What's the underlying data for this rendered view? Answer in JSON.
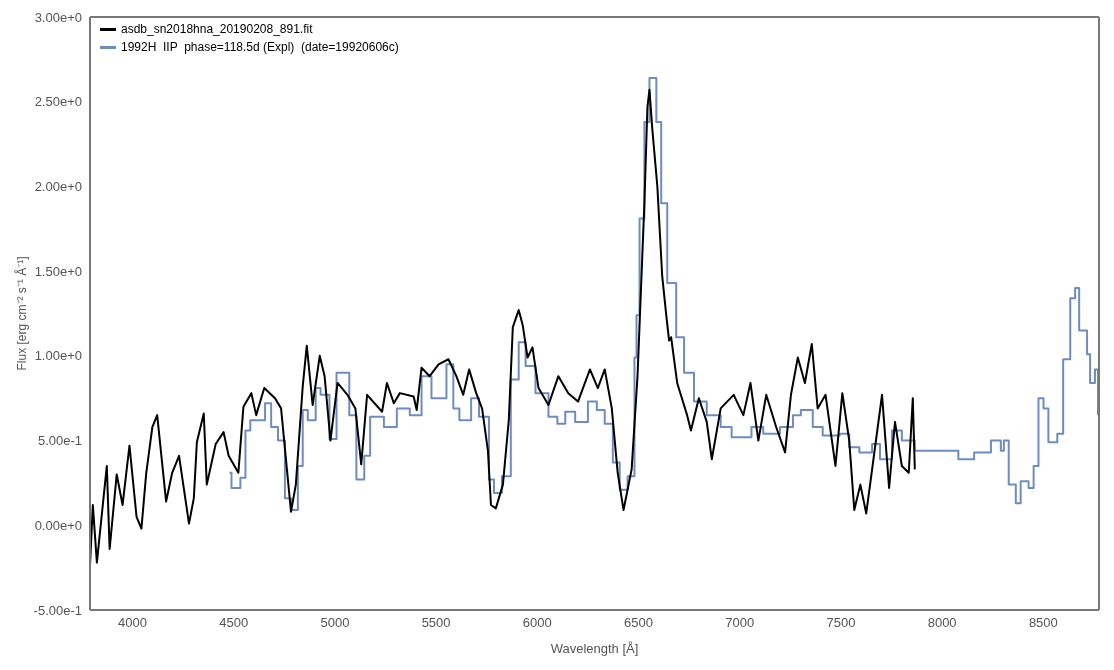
{
  "chart_data": {
    "type": "line",
    "xlabel": "Wavelength [Å]",
    "ylabel": "Flux [erg cm⁻² s⁻¹ Å⁻¹]",
    "xlim": [
      3790,
      8775
    ],
    "xticks": [
      4000,
      4500,
      5000,
      5500,
      6000,
      6500,
      7000,
      7500,
      8000,
      8500
    ],
    "ylim": [
      -0.5,
      3
    ],
    "yticks": [
      {
        "value": -0.5,
        "label": "-5.00e-1"
      },
      {
        "value": 0,
        "label": "0.00e+0"
      },
      {
        "value": 0.5,
        "label": "5.00e-1"
      },
      {
        "value": 1,
        "label": "1.00e+0"
      },
      {
        "value": 1.5,
        "label": "1.50e+0"
      },
      {
        "value": 2,
        "label": "2.00e+0"
      },
      {
        "value": 2.5,
        "label": "2.50e+0"
      },
      {
        "value": 3,
        "label": "3.00e+0"
      }
    ],
    "grid": false,
    "legend": "top left",
    "marker": "none",
    "series": [
      {
        "name": "asdb_sn2018hna_20190208_891.fit",
        "color": "#000000",
        "x": [
          3790,
          3804,
          3824,
          3873,
          3887,
          3922,
          3951,
          3985,
          4020,
          4044,
          4068,
          4098,
          4122,
          4166,
          4196,
          4230,
          4279,
          4303,
          4318,
          4352,
          4367,
          4411,
          4450,
          4475,
          4523,
          4548,
          4587,
          4611,
          4651,
          4704,
          4734,
          4783,
          4807,
          4841,
          4861,
          4890,
          4925,
          4949,
          4978,
          5013,
          5062,
          5101,
          5130,
          5159,
          5233,
          5257,
          5291,
          5321,
          5389,
          5404,
          5428,
          5468,
          5512,
          5561,
          5600,
          5634,
          5663,
          5698,
          5727,
          5756,
          5771,
          5795,
          5830,
          5859,
          5879,
          5908,
          5928,
          5952,
          5976,
          6006,
          6055,
          6104,
          6153,
          6201,
          6260,
          6299,
          6333,
          6368,
          6397,
          6426,
          6466,
          6495,
          6529,
          6544,
          6554,
          6568,
          6593,
          6617,
          6637,
          6651,
          6661,
          6691,
          6740,
          6759,
          6798,
          6837,
          6862,
          6906,
          6970,
          7018,
          7053,
          7092,
          7131,
          7180,
          7224,
          7253,
          7287,
          7322,
          7356,
          7385,
          7424,
          7473,
          7507,
          7541,
          7566,
          7596,
          7625,
          7654,
          7703,
          7738,
          7767,
          7801,
          7835,
          7855,
          7865
        ],
        "values": [
          -0.24,
          0.12,
          -0.22,
          0.35,
          -0.14,
          0.3,
          0.12,
          0.47,
          0.05,
          -0.02,
          0.31,
          0.58,
          0.65,
          0.14,
          0.31,
          0.41,
          0.01,
          0.16,
          0.49,
          0.66,
          0.24,
          0.48,
          0.55,
          0.41,
          0.31,
          0.7,
          0.78,
          0.65,
          0.81,
          0.75,
          0.69,
          0.08,
          0.24,
          0.82,
          1.06,
          0.71,
          1.0,
          0.88,
          0.5,
          0.84,
          0.77,
          0.69,
          0.36,
          0.77,
          0.67,
          0.84,
          0.72,
          0.78,
          0.76,
          0.68,
          0.93,
          0.88,
          0.95,
          0.98,
          0.88,
          0.77,
          0.92,
          0.78,
          0.69,
          0.44,
          0.12,
          0.1,
          0.24,
          0.62,
          1.17,
          1.27,
          1.18,
          0.99,
          1.05,
          0.81,
          0.71,
          0.88,
          0.78,
          0.73,
          0.92,
          0.81,
          0.92,
          0.69,
          0.31,
          0.09,
          0.33,
          0.88,
          1.9,
          2.47,
          2.57,
          2.34,
          2.0,
          1.47,
          1.24,
          1.09,
          1.11,
          0.84,
          0.65,
          0.56,
          0.75,
          0.61,
          0.39,
          0.69,
          0.77,
          0.65,
          0.84,
          0.5,
          0.77,
          0.58,
          0.43,
          0.77,
          0.99,
          0.84,
          1.07,
          0.69,
          0.77,
          0.35,
          0.78,
          0.5,
          0.09,
          0.24,
          0.07,
          0.33,
          0.77,
          0.22,
          0.61,
          0.35,
          0.31,
          0.75,
          0.33
        ]
      },
      {
        "name": "1992H  IIP  phase=118.5d (Expl)  (date=19920606c)",
        "color": "#6f8cc0",
        "type": "step",
        "x": [
          4479,
          4489,
          4533,
          4558,
          4582,
          4621,
          4655,
          4685,
          4719,
          4753,
          4783,
          4817,
          4841,
          4866,
          4885,
          4905,
          4929,
          4973,
          5008,
          5027,
          5071,
          5106,
          5145,
          5174,
          5242,
          5306,
          5370,
          5428,
          5477,
          5551,
          5585,
          5615,
          5673,
          5712,
          5761,
          5786,
          5825,
          5869,
          5908,
          5942,
          5991,
          6055,
          6099,
          6138,
          6187,
          6250,
          6294,
          6333,
          6373,
          6407,
          6446,
          6480,
          6490,
          6505,
          6529,
          6554,
          6588,
          6612,
          6642,
          6686,
          6725,
          6774,
          6837,
          6906,
          6960,
          7058,
          7116,
          7199,
          7263,
          7302,
          7361,
          7410,
          7493,
          7541,
          7591,
          7654,
          7693,
          7752,
          7801,
          7865,
          7933,
          7997,
          8080,
          8158,
          8241,
          8290,
          8305,
          8329,
          8364,
          8388,
          8427,
          8452,
          8476,
          8501,
          8525,
          8569,
          8598,
          8633,
          8657,
          8677,
          8716,
          8731,
          8755,
          8770
        ],
        "values": [
          0.31,
          0.22,
          0.28,
          0.56,
          0.62,
          0.62,
          0.72,
          0.58,
          0.5,
          0.16,
          0.09,
          0.35,
          0.68,
          0.62,
          0.62,
          0.81,
          0.77,
          0.51,
          0.9,
          0.9,
          0.65,
          0.27,
          0.41,
          0.64,
          0.58,
          0.69,
          0.65,
          0.88,
          0.75,
          0.95,
          0.69,
          0.62,
          0.75,
          0.64,
          0.27,
          0.19,
          0.29,
          0.86,
          1.08,
          0.94,
          0.78,
          0.64,
          0.6,
          0.67,
          0.61,
          0.73,
          0.68,
          0.6,
          0.37,
          0.21,
          0.29,
          0.99,
          1.24,
          1.81,
          2.38,
          2.64,
          2.38,
          1.9,
          1.43,
          1.11,
          0.9,
          0.73,
          0.65,
          0.58,
          0.52,
          0.58,
          0.54,
          0.58,
          0.65,
          0.68,
          0.58,
          0.53,
          0.54,
          0.46,
          0.43,
          0.48,
          0.39,
          0.56,
          0.5,
          0.44,
          0.44,
          0.44,
          0.39,
          0.43,
          0.5,
          0.44,
          0.5,
          0.24,
          0.13,
          0.26,
          0.22,
          0.35,
          0.75,
          0.69,
          0.49,
          0.54,
          0.98,
          1.34,
          1.4,
          1.15,
          1.01,
          0.84,
          0.92,
          0.65
        ]
      }
    ]
  }
}
